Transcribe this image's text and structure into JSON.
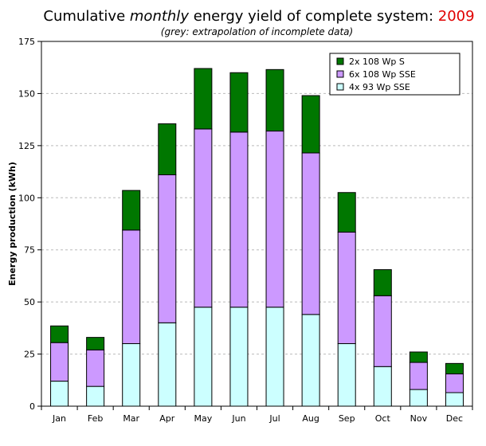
{
  "chart_data": {
    "type": "bar",
    "stacked": true,
    "title_parts": {
      "prefix": "Cumulative ",
      "emphasis": "monthly",
      "middle": " energy yield of complete system: ",
      "year": "2009"
    },
    "subtitle": "(grey: extrapolation of incomplete data)",
    "ylabel": "Energy production (kWh)",
    "xlabel": "",
    "ylim": [
      0,
      175
    ],
    "yticks": [
      0,
      25,
      50,
      75,
      100,
      125,
      150,
      175
    ],
    "grid": true,
    "legend_position": "top-right",
    "categories": [
      "Jan",
      "Feb",
      "Mar",
      "Apr",
      "May",
      "Jun",
      "Jul",
      "Aug",
      "Sep",
      "Oct",
      "Nov",
      "Dec"
    ],
    "series": [
      {
        "name": "4x 93 Wp SSE",
        "color": "#ccffff",
        "values": [
          12,
          9.5,
          30,
          40,
          47.5,
          47.5,
          47.5,
          44,
          30,
          19,
          8,
          6.5
        ]
      },
      {
        "name": "6x 108 Wp SSE",
        "color": "#cc99ff",
        "values": [
          18.5,
          17.5,
          54.5,
          71,
          85.5,
          84,
          84.5,
          77.5,
          53.5,
          34,
          13,
          9
        ]
      },
      {
        "name": "2x 108 Wp S",
        "color": "#007700",
        "values": [
          8,
          6,
          19,
          24.5,
          29,
          28.5,
          29.5,
          27.5,
          19,
          12.5,
          5,
          5
        ]
      }
    ]
  }
}
